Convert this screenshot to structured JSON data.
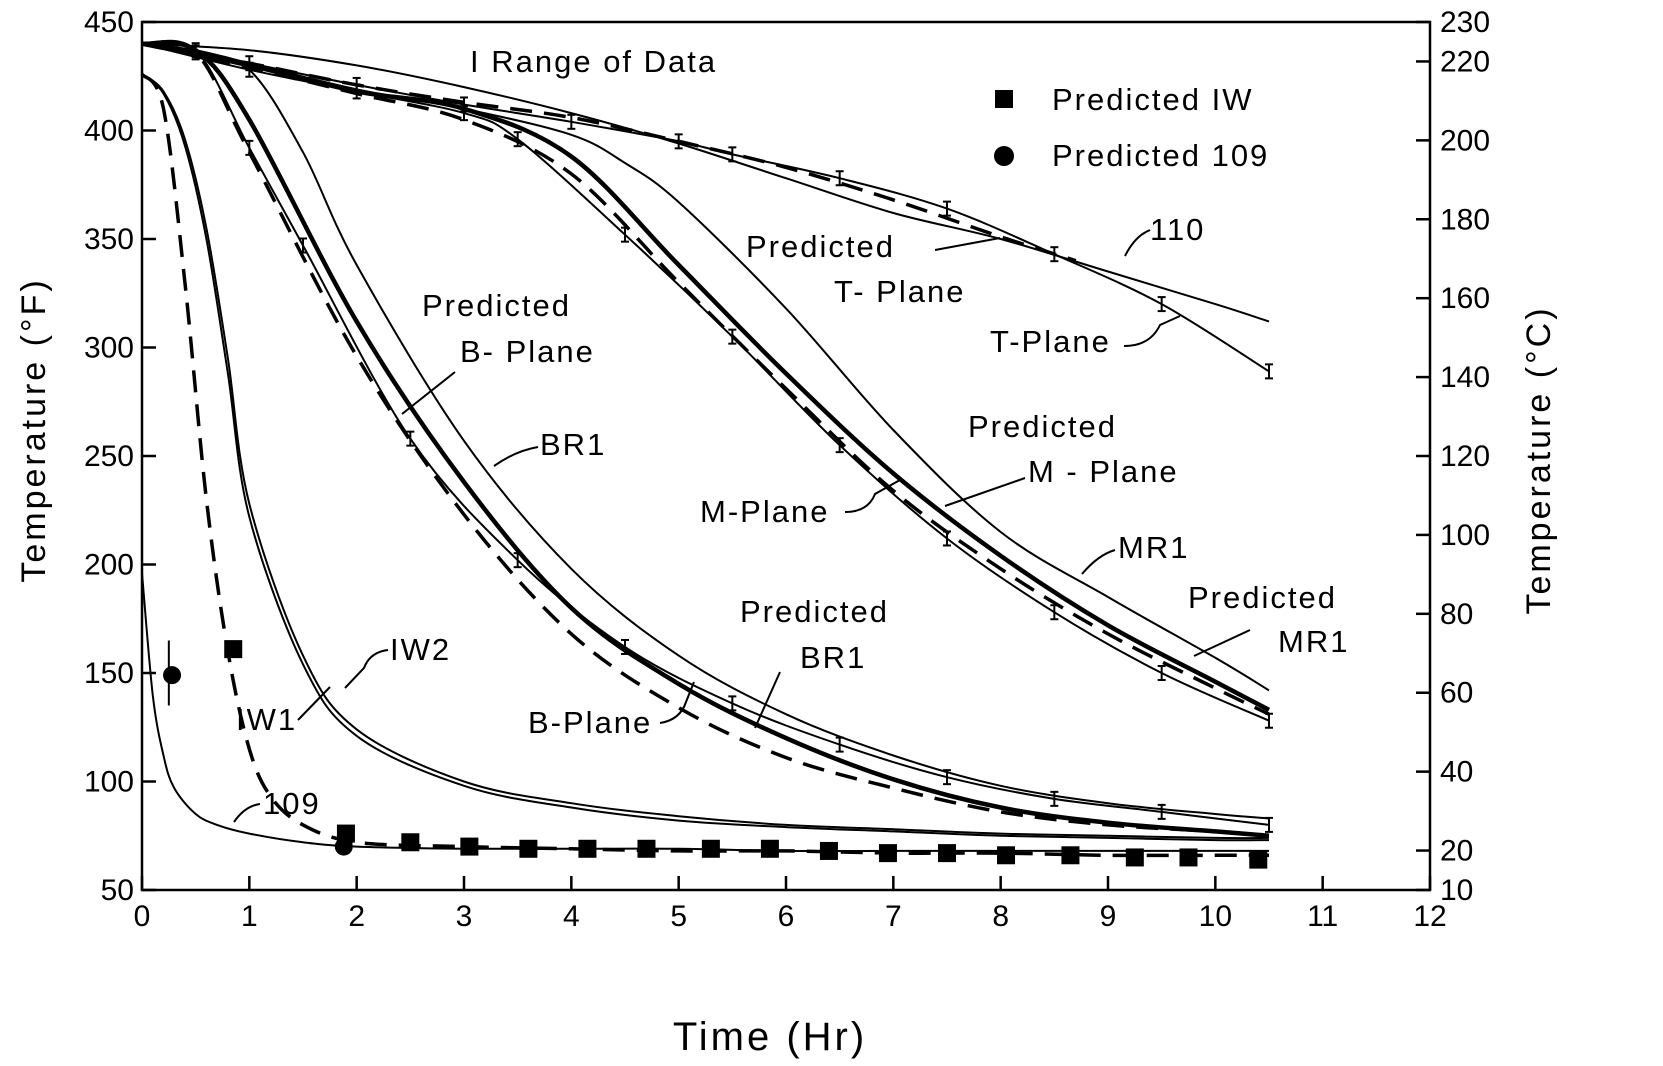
{
  "chart_data": {
    "type": "line",
    "xlabel": "Time (Hr)",
    "ylabel": "Temperature (°F)",
    "ylabel_right": "Temperature (°C)",
    "xlim": [
      0,
      12
    ],
    "ylim": [
      50,
      450
    ],
    "ylim_right": [
      10,
      230
    ],
    "x_ticks": [
      "0",
      "1",
      "2",
      "3",
      "4",
      "5",
      "6",
      "7",
      "8",
      "9",
      "10",
      "11",
      "12"
    ],
    "y_ticks": [
      "50",
      "100",
      "150",
      "200",
      "250",
      "300",
      "350",
      "400",
      "450"
    ],
    "y_ticks_right": [
      "10",
      "20",
      "40",
      "60",
      "80",
      "100",
      "120",
      "140",
      "160",
      "180",
      "200",
      "220",
      "230"
    ],
    "grid": false,
    "legend": {
      "placement": "top-right",
      "items": [
        {
          "label": "Predicted IW",
          "marker": "square"
        },
        {
          "label": "Predicted 109",
          "marker": "circle"
        }
      ]
    },
    "annotations": {
      "range_of_data": "I Range of Data",
      "pred_bplane_1": "Predicted",
      "pred_bplane_2": "B- Plane",
      "pred_tplane_1": "Predicted",
      "pred_tplane_2": "T- Plane",
      "pred_mplane_1": "Predicted",
      "pred_mplane_2": "M - Plane",
      "pred_br1_1": "Predicted",
      "pred_br1_2": "BR1",
      "pred_mr1_1": "Predicted",
      "pred_mr1_2": "MR1",
      "br1": "BR1",
      "bplane": "B-Plane",
      "mplane": "M-Plane",
      "mr1": "MR1",
      "tplane": "T-Plane",
      "c110": "110",
      "iw1": "IW1",
      "iw2": "IW2",
      "c109": "109"
    },
    "series": [
      {
        "name": "110",
        "style": "solid-thin",
        "x": [
          0,
          1,
          2,
          3,
          4,
          5,
          6,
          7,
          8,
          9,
          10,
          10.5
        ],
        "y": [
          440,
          437,
          430,
          420,
          408,
          394,
          378,
          362,
          350,
          335,
          320,
          312
        ]
      },
      {
        "name": "T-Plane",
        "style": "solid-thin-errorbars",
        "x": [
          0,
          0.5,
          1,
          2,
          3,
          4,
          5,
          5.5,
          6.5,
          7.5,
          8.5,
          9.5,
          10.5
        ],
        "y": [
          440,
          436,
          431,
          421,
          412,
          404,
          395,
          389,
          378,
          364,
          343,
          320,
          289
        ]
      },
      {
        "name": "Predicted T-Plane",
        "style": "dashed",
        "x": [
          0,
          0.5,
          1,
          2,
          3,
          4,
          5,
          6,
          7,
          8,
          8.7
        ],
        "y": [
          440,
          435,
          431,
          421,
          413,
          406,
          395,
          383,
          368,
          351,
          340
        ]
      },
      {
        "name": "MR1",
        "style": "solid-thin",
        "x": [
          0,
          0.5,
          1,
          2,
          3,
          4,
          4.5,
          5,
          6,
          7,
          8,
          9,
          10,
          10.5
        ],
        "y": [
          440,
          437,
          431,
          419,
          410,
          398,
          385,
          367,
          318,
          262,
          215,
          185,
          157,
          142
        ]
      },
      {
        "name": "M-Plane",
        "style": "solid-thin-errorbars",
        "x": [
          0,
          1,
          2,
          3,
          3.5,
          4.5,
          5.5,
          6.5,
          7.5,
          8.5,
          9.5,
          10.5
        ],
        "y": [
          440,
          428,
          418,
          408,
          396,
          352,
          305,
          255,
          212,
          178,
          150,
          128
        ]
      },
      {
        "name": "Predicted M-Plane",
        "style": "solid-thick",
        "x": [
          0,
          1,
          2,
          3,
          4,
          5,
          6,
          7,
          8,
          9,
          10,
          10.5
        ],
        "y": [
          440,
          430,
          418,
          410,
          388,
          338,
          288,
          242,
          204,
          172,
          146,
          133
        ]
      },
      {
        "name": "Predicted MR1",
        "style": "dashed",
        "x": [
          0,
          1,
          2,
          3,
          4,
          5,
          6,
          7,
          8,
          9,
          10,
          10.5
        ],
        "y": [
          440,
          429,
          417,
          405,
          380,
          330,
          281,
          234,
          198,
          168,
          143,
          131
        ]
      },
      {
        "name": "BR1",
        "style": "solid-thin",
        "x": [
          0,
          0.5,
          1,
          1.5,
          2,
          3,
          4,
          5,
          6,
          7,
          8,
          9,
          10,
          10.5
        ],
        "y": [
          440,
          436,
          428,
          390,
          338,
          257,
          198,
          158,
          131,
          112,
          98,
          90,
          85,
          83
        ]
      },
      {
        "name": "B-Plane",
        "style": "solid-thin-errorbars",
        "x": [
          0,
          0.5,
          1,
          1.5,
          2.5,
          3.5,
          4.5,
          5.5,
          6.5,
          7.5,
          8.5,
          9.5,
          10.5
        ],
        "y": [
          440,
          437,
          392,
          347,
          258,
          202,
          162,
          136,
          117,
          102,
          92,
          86,
          80
        ]
      },
      {
        "name": "Predicted B-Plane",
        "style": "solid-thick",
        "x": [
          0,
          0.5,
          1,
          2,
          3,
          4,
          5,
          6,
          7,
          8,
          9,
          10,
          10.5
        ],
        "y": [
          440,
          437,
          405,
          312,
          238,
          180,
          145,
          120,
          101,
          88,
          81,
          77,
          75
        ]
      },
      {
        "name": "Predicted BR1",
        "style": "dashed",
        "x": [
          0,
          0.5,
          1,
          2,
          3,
          4,
          5,
          6,
          7,
          8,
          9,
          10,
          10.5
        ],
        "y": [
          440,
          436,
          390,
          296,
          223,
          168,
          134,
          111,
          97,
          86,
          80,
          77,
          75
        ]
      },
      {
        "name": "IW2",
        "style": "solid-thin",
        "x": [
          0,
          0.2,
          0.4,
          0.6,
          0.8,
          1,
          1.5,
          2,
          3,
          4,
          5,
          6,
          7,
          8,
          9,
          10,
          10.5
        ],
        "y": [
          426,
          418,
          396,
          355,
          295,
          228,
          158,
          124,
          100,
          90,
          84,
          80,
          78,
          76,
          75,
          74,
          74
        ]
      },
      {
        "name": "IW1",
        "style": "solid-thin",
        "x": [
          0,
          0.2,
          0.4,
          0.6,
          0.8,
          1,
          1.5,
          2,
          3,
          4,
          5,
          6,
          7,
          8,
          9,
          10,
          10.5
        ],
        "y": [
          426,
          417,
          393,
          350,
          288,
          222,
          154,
          121,
          98,
          88,
          82,
          79,
          77,
          75,
          74,
          73,
          73
        ]
      },
      {
        "name": "Predicted IW",
        "style": "dashed",
        "x": [
          0,
          0.2,
          0.4,
          0.6,
          0.8,
          1,
          1.2,
          1.5,
          2,
          3,
          4,
          5,
          6,
          7,
          8,
          9,
          10,
          10.5
        ],
        "y": [
          426,
          410,
          330,
          230,
          160,
          115,
          93,
          80,
          72,
          70,
          69,
          68,
          68,
          67,
          67,
          66,
          66,
          66
        ]
      },
      {
        "name": "109",
        "style": "solid-thin",
        "x": [
          0,
          0.1,
          0.2,
          0.3,
          0.5,
          0.7,
          1,
          1.5,
          2,
          3,
          4,
          5,
          6,
          7,
          8,
          9,
          10,
          10.5
        ],
        "y": [
          196,
          140,
          112,
          97,
          85,
          80,
          76,
          72,
          70,
          69,
          69,
          69,
          68,
          68,
          68,
          68,
          68,
          68
        ]
      }
    ],
    "predicted_iw_points": {
      "x": [
        0.85,
        1.9,
        2.5,
        3.05,
        3.6,
        4.15,
        4.7,
        5.3,
        5.85,
        6.4,
        6.95,
        7.5,
        8.05,
        8.65,
        9.25,
        9.75,
        10.4
      ],
      "y": [
        161,
        76,
        72,
        70,
        69,
        69,
        69,
        69,
        69,
        68,
        67,
        67,
        66,
        66,
        65,
        65,
        64
      ]
    },
    "predicted_109_points": {
      "x": [
        0.28,
        1.88
      ],
      "y": [
        149,
        70
      ]
    }
  }
}
